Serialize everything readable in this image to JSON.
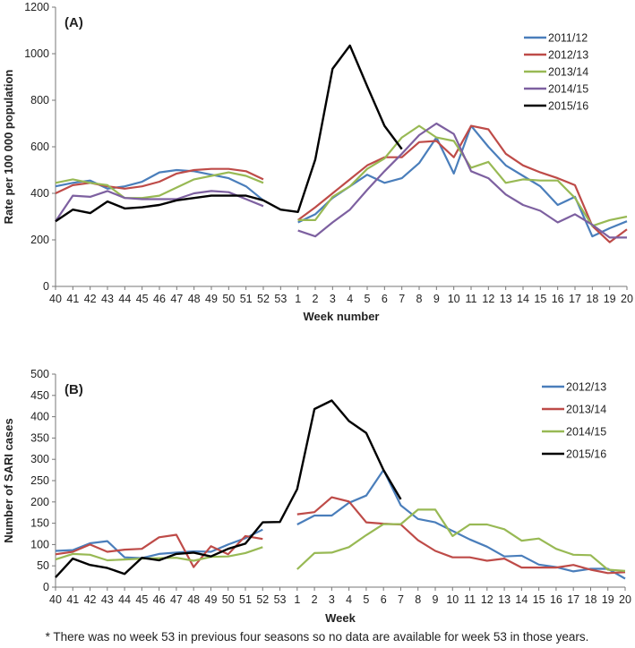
{
  "chart_data": [
    {
      "type": "line",
      "panel_label": "(A)",
      "xlabel": "Week number",
      "ylabel": "Rate per 100 000 population",
      "ylim": [
        0,
        1200
      ],
      "yticks": [
        0,
        200,
        400,
        600,
        800,
        1000,
        1200
      ],
      "categories": [
        "40",
        "41",
        "42",
        "43",
        "44",
        "45",
        "46",
        "47",
        "48",
        "49",
        "50",
        "51",
        "52",
        "53",
        "1",
        "2",
        "3",
        "4",
        "5",
        "6",
        "7",
        "8",
        "9",
        "10",
        "11",
        "12",
        "13",
        "14",
        "15",
        "16",
        "17",
        "18",
        "19",
        "20"
      ],
      "legend_position": "top-right",
      "grid": false,
      "series": [
        {
          "name": "2011/12",
          "color": "#4a7ebb",
          "values": [
            430,
            445,
            455,
            420,
            430,
            450,
            490,
            500,
            495,
            480,
            465,
            430,
            370,
            null,
            275,
            310,
            380,
            430,
            480,
            445,
            465,
            530,
            640,
            485,
            690,
            600,
            520,
            475,
            430,
            350,
            385,
            215,
            250,
            280
          ]
        },
        {
          "name": "2012/13",
          "color": "#be4b48",
          "values": [
            400,
            435,
            445,
            430,
            420,
            430,
            450,
            485,
            500,
            505,
            505,
            495,
            460,
            null,
            285,
            340,
            400,
            460,
            520,
            555,
            555,
            620,
            625,
            555,
            690,
            675,
            570,
            520,
            490,
            465,
            435,
            260,
            190,
            245
          ]
        },
        {
          "name": "2013/14",
          "color": "#98b954",
          "values": [
            445,
            460,
            445,
            435,
            380,
            380,
            390,
            425,
            460,
            475,
            490,
            475,
            445,
            null,
            285,
            285,
            385,
            430,
            505,
            550,
            640,
            690,
            640,
            625,
            510,
            535,
            445,
            460,
            455,
            455,
            380,
            260,
            285,
            300
          ]
        },
        {
          "name": "2014/15",
          "color": "#7d60a0",
          "values": [
            280,
            390,
            385,
            410,
            380,
            375,
            375,
            375,
            400,
            410,
            405,
            375,
            345,
            null,
            240,
            215,
            275,
            330,
            415,
            495,
            570,
            650,
            700,
            655,
            495,
            465,
            395,
            350,
            325,
            275,
            310,
            265,
            210,
            210
          ]
        },
        {
          "name": "2015/16",
          "color": "#000000",
          "values": [
            280,
            330,
            315,
            365,
            335,
            340,
            350,
            370,
            380,
            390,
            390,
            390,
            370,
            330,
            320,
            545,
            935,
            1035,
            860,
            690,
            590,
            null,
            null,
            null,
            null,
            null,
            null,
            null,
            null,
            null,
            null,
            null,
            null,
            null
          ]
        }
      ]
    },
    {
      "type": "line",
      "panel_label": "(B)",
      "xlabel": "Week",
      "ylabel": "Number of SARI cases",
      "ylim": [
        0,
        500
      ],
      "yticks": [
        0,
        50,
        100,
        150,
        200,
        250,
        300,
        350,
        400,
        450,
        500
      ],
      "categories": [
        "40",
        "41",
        "42",
        "43",
        "44",
        "45",
        "46",
        "47",
        "48",
        "49",
        "50",
        "51",
        "52",
        "53",
        "1",
        "2",
        "3",
        "4",
        "5",
        "6",
        "7",
        "8",
        "9",
        "10",
        "11",
        "12",
        "13",
        "14",
        "15",
        "16",
        "17",
        "18",
        "19",
        "20"
      ],
      "legend_position": "top-right",
      "grid": false,
      "series": [
        {
          "name": "2012/13",
          "color": "#4a7ebb",
          "values": [
            85,
            87,
            103,
            108,
            70,
            68,
            78,
            81,
            84,
            83,
            100,
            115,
            135,
            null,
            147,
            168,
            168,
            198,
            215,
            275,
            192,
            160,
            152,
            132,
            112,
            95,
            72,
            74,
            53,
            47,
            37,
            43,
            43,
            20
          ]
        },
        {
          "name": "2013/14",
          "color": "#be4b48",
          "values": [
            77,
            83,
            100,
            83,
            88,
            90,
            117,
            123,
            47,
            96,
            77,
            120,
            113,
            null,
            171,
            176,
            211,
            201,
            152,
            149,
            147,
            110,
            85,
            70,
            70,
            62,
            67,
            46,
            46,
            46,
            52,
            41,
            33,
            35
          ]
        },
        {
          "name": "2014/15",
          "color": "#98b954",
          "values": [
            65,
            78,
            76,
            63,
            65,
            67,
            68,
            69,
            62,
            71,
            72,
            80,
            94,
            null,
            42,
            80,
            81,
            94,
            122,
            148,
            148,
            182,
            182,
            120,
            147,
            147,
            136,
            109,
            114,
            90,
            76,
            75,
            41,
            38
          ]
        },
        {
          "name": "2015/16",
          "color": "#000000",
          "values": [
            23,
            67,
            52,
            45,
            31,
            69,
            63,
            78,
            81,
            72,
            90,
            102,
            152,
            153,
            230,
            418,
            438,
            390,
            362,
            275,
            206,
            null,
            null,
            null,
            null,
            null,
            null,
            null,
            null,
            null,
            null,
            null,
            null,
            null
          ]
        }
      ]
    }
  ],
  "footnote": "* There was no week 53 in previous four seasons so no data are available for week 53 in those years."
}
